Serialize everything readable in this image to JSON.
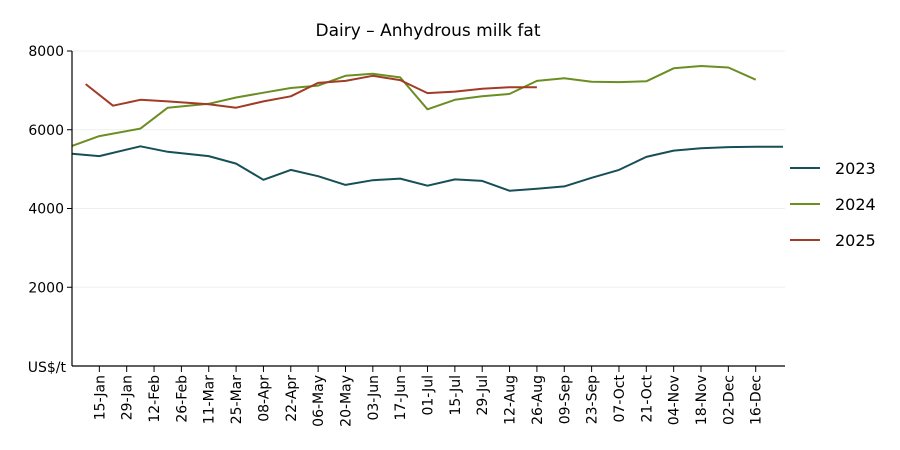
{
  "chart_data": {
    "type": "line",
    "title": "Dairy – Anhydrous milk fat",
    "ylabel": "US$/t",
    "xlabel": "",
    "ylim": [
      0,
      8000
    ],
    "yticks": [
      2000,
      4000,
      6000,
      8000
    ],
    "grid": true,
    "legend_position": "right",
    "x_ticks": [
      "15-Jan",
      "29-Jan",
      "12-Feb",
      "26-Feb",
      "11-Mar",
      "25-Mar",
      "08-Apr",
      "22-Apr",
      "06-May",
      "20-May",
      "03-Jun",
      "17-Jun",
      "01-Jul",
      "15-Jul",
      "29-Jul",
      "12-Aug",
      "26-Aug",
      "09-Sep",
      "23-Sep",
      "07-Oct",
      "21-Oct",
      "04-Nov",
      "18-Nov",
      "02-Dec",
      "16-Dec"
    ],
    "series": [
      {
        "name": "2023",
        "color": "#174f57",
        "points": [
          [
            "01-Jan",
            5390
          ],
          [
            "15-Jan",
            5330
          ],
          [
            "05-Feb",
            5580
          ],
          [
            "19-Feb",
            5440
          ],
          [
            "11-Mar",
            5330
          ],
          [
            "25-Mar",
            5140
          ],
          [
            "08-Apr",
            4730
          ],
          [
            "22-Apr",
            4980
          ],
          [
            "06-May",
            4820
          ],
          [
            "20-May",
            4600
          ],
          [
            "03-Jun",
            4720
          ],
          [
            "17-Jun",
            4760
          ],
          [
            "01-Jul",
            4580
          ],
          [
            "15-Jul",
            4740
          ],
          [
            "29-Jul",
            4700
          ],
          [
            "12-Aug",
            4450
          ],
          [
            "26-Aug",
            4500
          ],
          [
            "09-Sep",
            4560
          ],
          [
            "23-Sep",
            4780
          ],
          [
            "07-Oct",
            4980
          ],
          [
            "21-Oct",
            5310
          ],
          [
            "04-Nov",
            5470
          ],
          [
            "18-Nov",
            5530
          ],
          [
            "02-Dec",
            5560
          ],
          [
            "16-Dec",
            5570
          ],
          [
            "30-Dec",
            5570
          ]
        ]
      },
      {
        "name": "2024",
        "color": "#6b8e23",
        "points": [
          [
            "01-Jan",
            5590
          ],
          [
            "15-Jan",
            5840
          ],
          [
            "05-Feb",
            6030
          ],
          [
            "19-Feb",
            6560
          ],
          [
            "11-Mar",
            6660
          ],
          [
            "25-Mar",
            6820
          ],
          [
            "08-Apr",
            6940
          ],
          [
            "22-Apr",
            7060
          ],
          [
            "06-May",
            7120
          ],
          [
            "20-May",
            7370
          ],
          [
            "03-Jun",
            7420
          ],
          [
            "17-Jun",
            7330
          ],
          [
            "01-Jul",
            6520
          ],
          [
            "15-Jul",
            6760
          ],
          [
            "29-Jul",
            6850
          ],
          [
            "12-Aug",
            6910
          ],
          [
            "26-Aug",
            7240
          ],
          [
            "09-Sep",
            7310
          ],
          [
            "23-Sep",
            7220
          ],
          [
            "07-Oct",
            7210
          ],
          [
            "21-Oct",
            7230
          ],
          [
            "04-Nov",
            7560
          ],
          [
            "18-Nov",
            7620
          ],
          [
            "02-Dec",
            7580
          ],
          [
            "16-Dec",
            7270
          ]
        ]
      },
      {
        "name": "2025",
        "color": "#a13b26",
        "points": [
          [
            "08-Jan",
            7160
          ],
          [
            "22-Jan",
            6610
          ],
          [
            "05-Feb",
            6760
          ],
          [
            "19-Feb",
            6720
          ],
          [
            "11-Mar",
            6650
          ],
          [
            "25-Mar",
            6560
          ],
          [
            "08-Apr",
            6720
          ],
          [
            "22-Apr",
            6850
          ],
          [
            "06-May",
            7190
          ],
          [
            "20-May",
            7240
          ],
          [
            "03-Jun",
            7370
          ],
          [
            "17-Jun",
            7260
          ],
          [
            "01-Jul",
            6930
          ],
          [
            "15-Jul",
            6970
          ],
          [
            "29-Jul",
            7040
          ],
          [
            "12-Aug",
            7080
          ],
          [
            "26-Aug",
            7080
          ]
        ]
      }
    ]
  }
}
